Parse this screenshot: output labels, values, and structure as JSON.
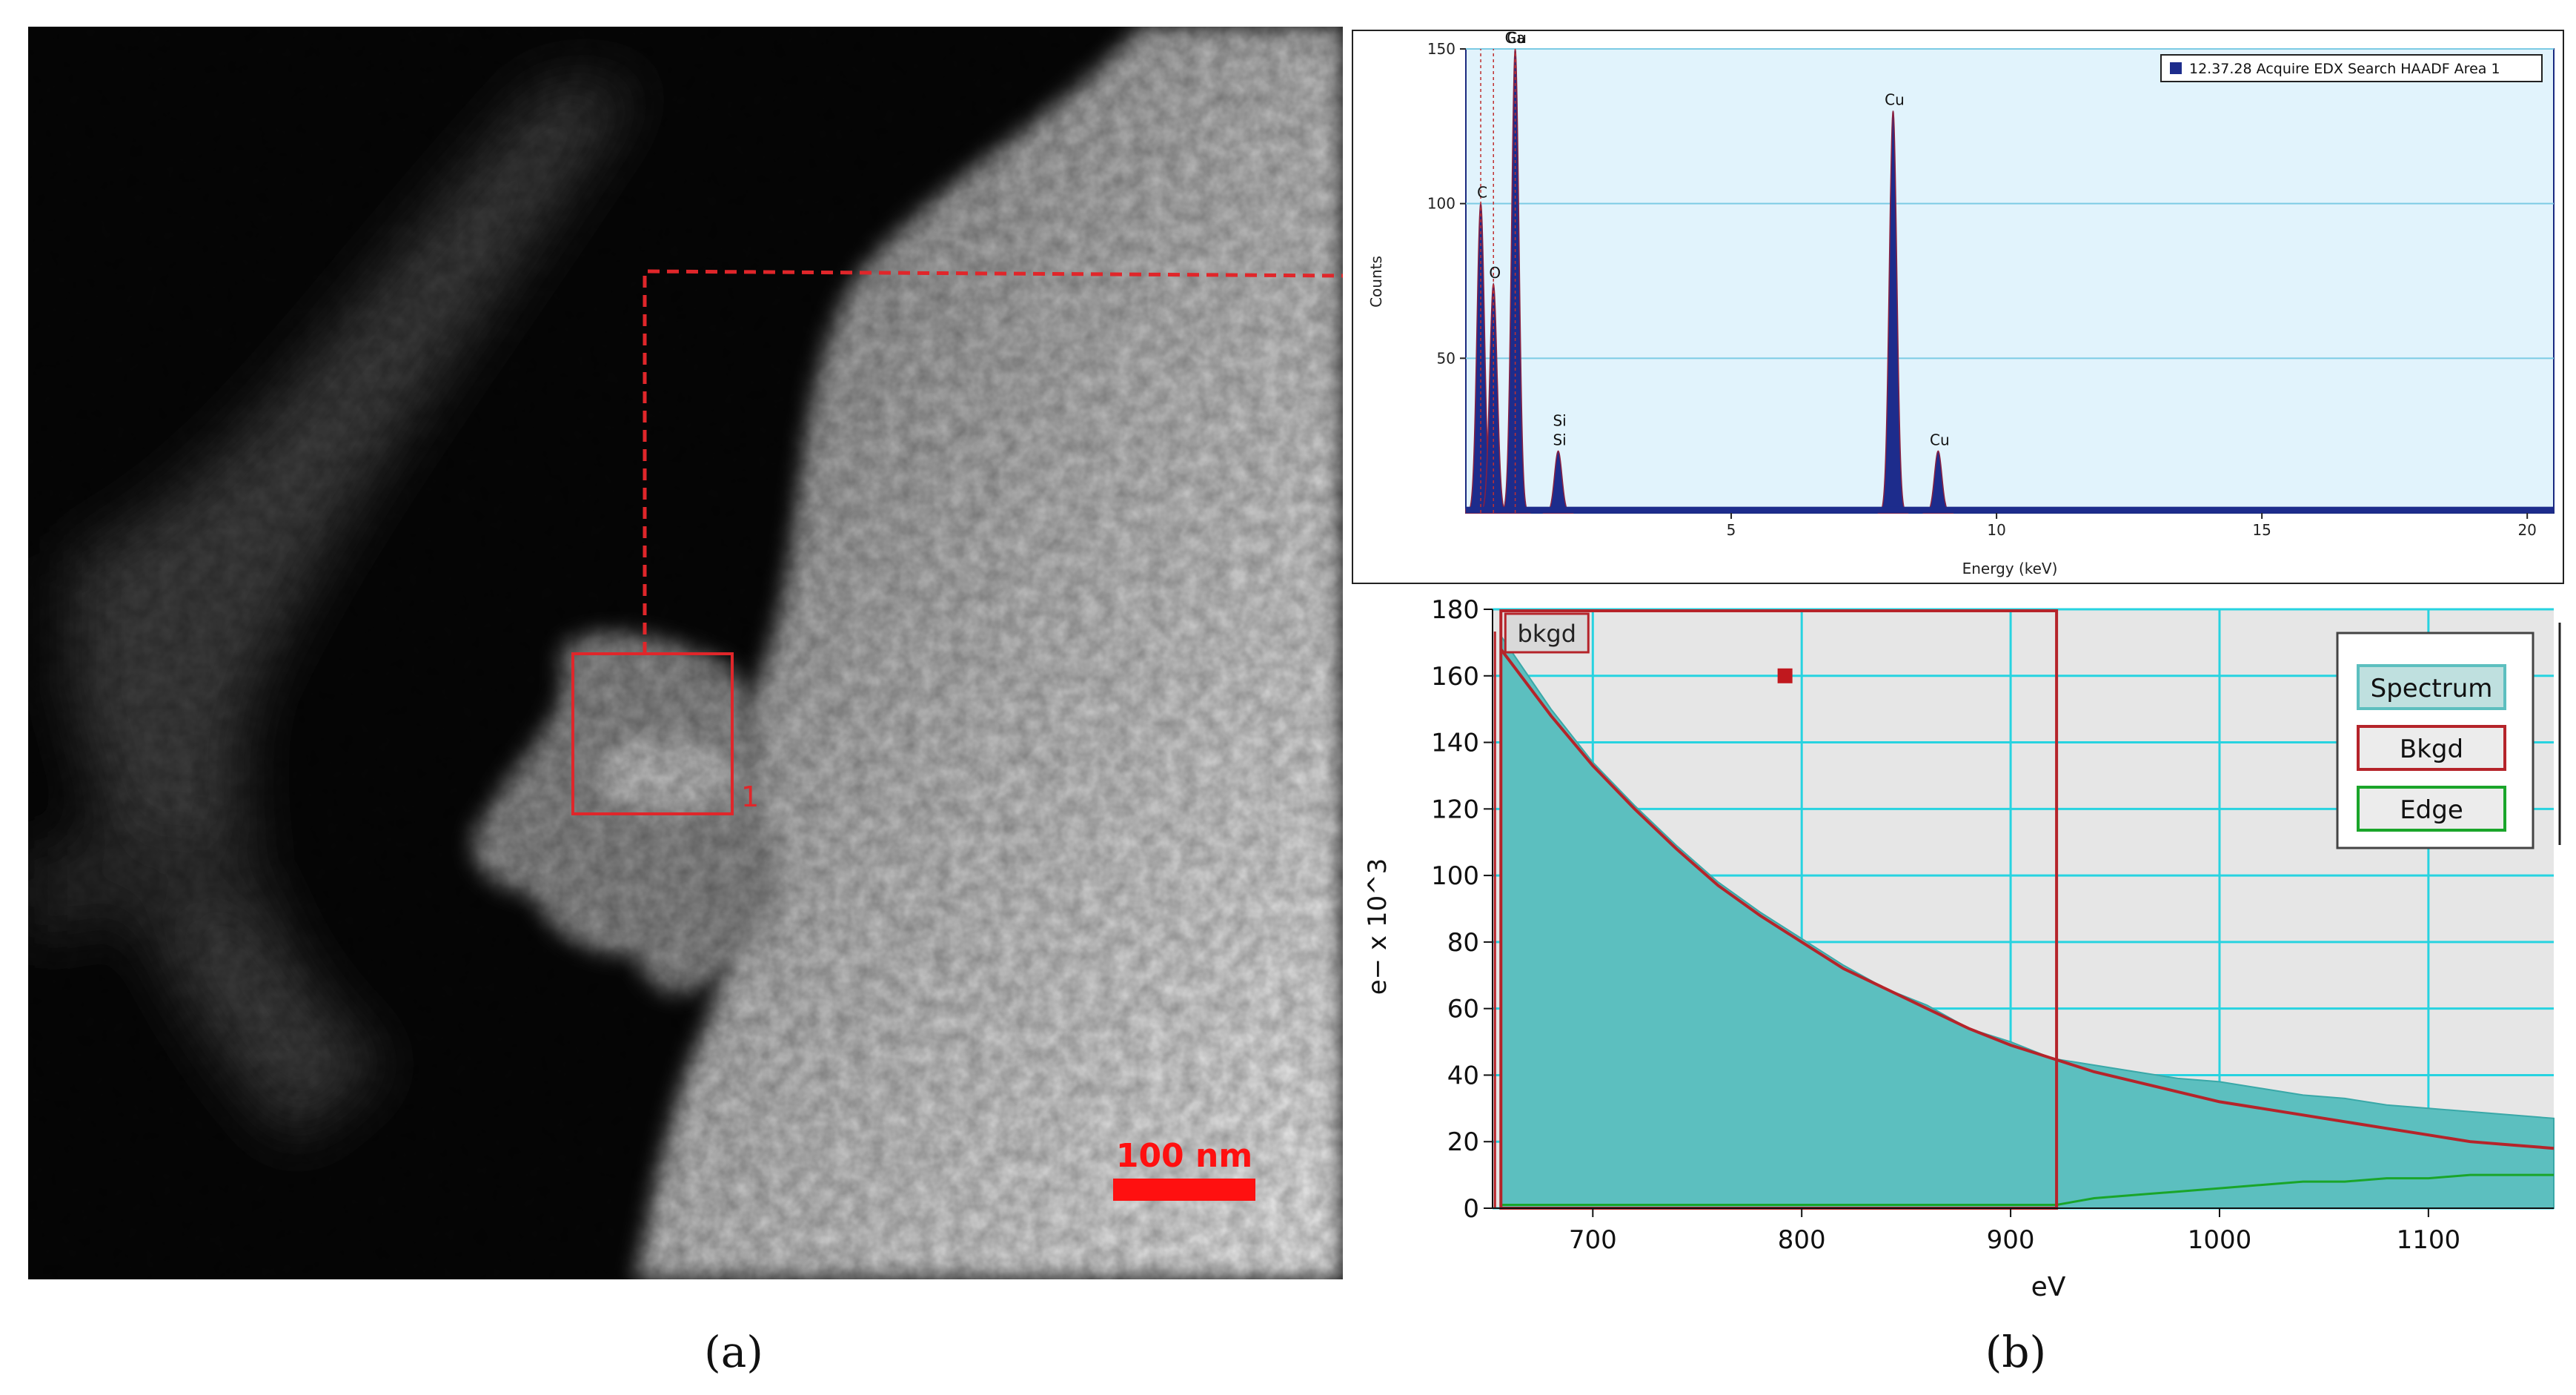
{
  "figure": {
    "captions": {
      "a": "(a)",
      "b": "(b)"
    }
  },
  "stem_image": {
    "scale_bar_label": "100 nm",
    "region_label": "1",
    "colors": {
      "annotation": "#e0262a",
      "scale_bar": "#ff1010"
    }
  },
  "chart_data": [
    {
      "type": "area",
      "legend": [
        "12.37.28 Acquire EDX Search HAADF Area 1"
      ],
      "legend_placement": "top-right",
      "ylabel": "Counts",
      "xlabel": "Energy (keV)",
      "xlim": [
        0,
        20.5
      ],
      "ylim": [
        0,
        150
      ],
      "x_ticks": [
        5,
        10,
        15,
        20
      ],
      "y_ticks": [
        50,
        100,
        150
      ],
      "grid": "horizontal",
      "colors": {
        "plot_bg": "#e1f3fc",
        "fill": "#1d2c8c",
        "grid": "#7ccbe4",
        "marker": "#c03030"
      },
      "peaks": [
        {
          "x": 0.28,
          "y": 100,
          "label": "C"
        },
        {
          "x": 0.52,
          "y": 74,
          "label": "O"
        },
        {
          "x": 0.93,
          "y": 150,
          "label": "Cu"
        },
        {
          "x": 1.74,
          "y": 20,
          "label": "Si"
        },
        {
          "x": 8.05,
          "y": 130,
          "label": "Cu"
        },
        {
          "x": 8.9,
          "y": 20,
          "label": "Cu"
        }
      ],
      "peak_label_overlays": [
        {
          "x": 0.9,
          "label": "Ga"
        },
        {
          "x": 1.74,
          "label": "Si"
        }
      ]
    },
    {
      "type": "area",
      "xlabel": "eV",
      "ylabel": "e− x 10^3",
      "xlim": [
        652,
        1160
      ],
      "ylim": [
        0,
        180
      ],
      "x_ticks": [
        700,
        800,
        900,
        1000,
        1100
      ],
      "y_ticks": [
        0,
        20,
        40,
        60,
        80,
        100,
        120,
        140,
        160,
        180
      ],
      "grid": true,
      "legend": [
        "Spectrum",
        "Bkgd",
        "Edge"
      ],
      "legend_placement": "top-right",
      "window_label": "bkgd",
      "background_window": [
        656,
        922
      ],
      "marker": {
        "x": 792,
        "y": 160
      },
      "colors": {
        "plot_bg": "#e6e6e6",
        "spectrum": "#5cbfbf",
        "bkgd": "#b5242a",
        "edge": "#1aa52a",
        "grid": "#27d3e0",
        "legend_spectrum_bg": "#bfe0df"
      },
      "series": [
        {
          "name": "Spectrum",
          "x": [
            656,
            680,
            700,
            720,
            740,
            760,
            780,
            800,
            820,
            840,
            860,
            880,
            900,
            920,
            940,
            960,
            980,
            1000,
            1020,
            1040,
            1060,
            1080,
            1100,
            1120,
            1140,
            1160
          ],
          "y": [
            172,
            150,
            134,
            121,
            109,
            98,
            89,
            81,
            73,
            66,
            61,
            54,
            50,
            45,
            43,
            41,
            39,
            38,
            36,
            34,
            33,
            31,
            30,
            29,
            28,
            27
          ]
        },
        {
          "name": "Bkgd",
          "x": [
            656,
            680,
            700,
            720,
            740,
            760,
            780,
            800,
            820,
            840,
            860,
            880,
            900,
            920,
            940,
            960,
            980,
            1000,
            1020,
            1040,
            1060,
            1080,
            1100,
            1120,
            1140,
            1160
          ],
          "y": [
            168,
            148,
            133,
            120,
            108,
            97,
            88,
            80,
            72,
            66,
            60,
            54,
            49,
            45,
            41,
            38,
            35,
            32,
            30,
            28,
            26,
            24,
            22,
            20,
            19,
            18
          ]
        },
        {
          "name": "Edge",
          "x": [
            656,
            700,
            800,
            900,
            922,
            940,
            960,
            980,
            1000,
            1020,
            1040,
            1060,
            1080,
            1100,
            1120,
            1140,
            1160
          ],
          "y": [
            1,
            1,
            1,
            1,
            1,
            3,
            4,
            5,
            6,
            7,
            8,
            8,
            9,
            9,
            10,
            10,
            10
          ]
        }
      ]
    }
  ]
}
